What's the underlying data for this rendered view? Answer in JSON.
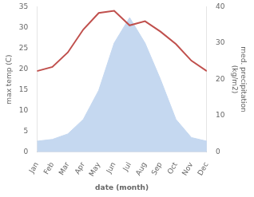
{
  "chart_data": {
    "type": "line",
    "categories": [
      "Jan",
      "Feb",
      "Mar",
      "Apr",
      "May",
      "Jun",
      "Jul",
      "Aug",
      "Sep",
      "Oct",
      "Nov",
      "Dec"
    ],
    "series": [
      {
        "type": "area",
        "axis": "y2",
        "color": "#c5d8f0",
        "values": [
          3.0,
          3.5,
          5.0,
          9.0,
          17.0,
          30.0,
          37.0,
          30.0,
          20.0,
          9.0,
          4.0,
          3.0
        ]
      },
      {
        "type": "line",
        "color": "#c0504d",
        "values": [
          19.5,
          20.5,
          24.0,
          29.5,
          33.5,
          34.0,
          30.5,
          31.5,
          29.0,
          26.0,
          22.0,
          19.5
        ]
      }
    ],
    "xlabel": "date (month)",
    "ylabel": "max temp (C)",
    "y2label": "med. precipitation\n(kg/m2)",
    "ylim": [
      0,
      35
    ],
    "yticks": [
      0,
      5,
      10,
      15,
      20,
      25,
      30,
      35
    ],
    "y2lim": [
      0,
      40
    ],
    "y2ticks": [
      0,
      10,
      20,
      30,
      40
    ],
    "grid": false,
    "legend": false
  }
}
